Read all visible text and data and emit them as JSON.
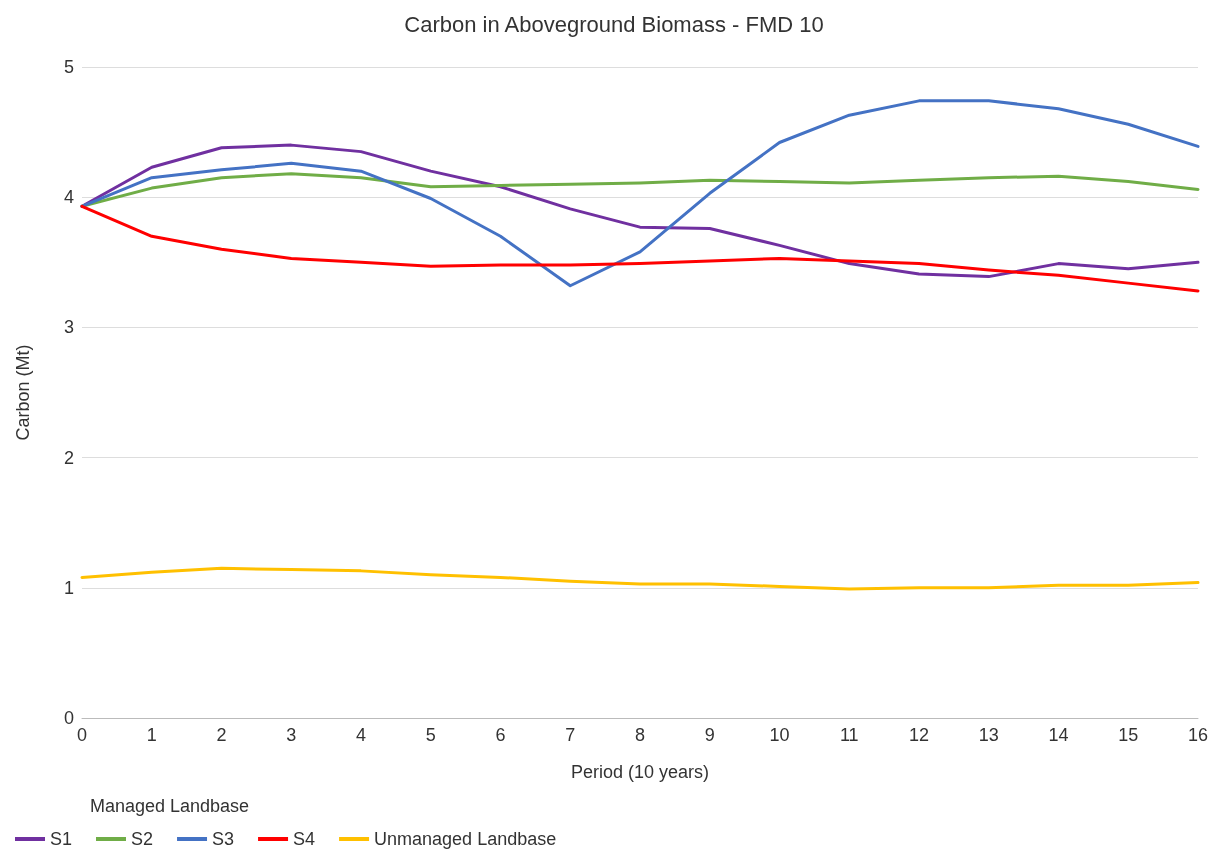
{
  "chart_data": {
    "type": "line",
    "title": "Carbon in Aboveground Biomass - FMD 10",
    "xlabel": "Period (10 years)",
    "ylabel": "Carbon (Mt)",
    "legend_title": "Managed Landbase",
    "x": [
      0,
      1,
      2,
      3,
      4,
      5,
      6,
      7,
      8,
      9,
      10,
      11,
      12,
      13,
      14,
      15,
      16
    ],
    "xlim": [
      0,
      16
    ],
    "xticks": [
      0,
      1,
      2,
      3,
      4,
      5,
      6,
      7,
      8,
      9,
      10,
      11,
      12,
      13,
      14,
      15,
      16
    ],
    "series": [
      {
        "name": "S1",
        "color": "#7030a0",
        "values": [
          3.93,
          4.23,
          4.38,
          4.4,
          4.35,
          4.2,
          4.08,
          3.91,
          3.77,
          3.76,
          3.63,
          3.49,
          3.41,
          3.39,
          3.49,
          3.45,
          3.5
        ]
      },
      {
        "name": "S2",
        "color": "#70ad47",
        "values": [
          3.93,
          4.07,
          4.15,
          4.18,
          4.15,
          4.08,
          4.09,
          4.1,
          4.11,
          4.13,
          4.12,
          4.11,
          4.13,
          4.15,
          4.16,
          4.12,
          4.06
        ]
      },
      {
        "name": "S3",
        "color": "#4472c4",
        "values": [
          3.93,
          4.15,
          4.21,
          4.26,
          4.2,
          3.99,
          3.7,
          3.32,
          3.58,
          4.03,
          4.42,
          4.63,
          4.74,
          4.74,
          4.68,
          4.56,
          4.39
        ]
      },
      {
        "name": "S4",
        "color": "#ff0000",
        "values": [
          3.93,
          3.7,
          3.6,
          3.53,
          3.5,
          3.47,
          3.48,
          3.48,
          3.49,
          3.51,
          3.53,
          3.51,
          3.49,
          3.44,
          3.4,
          3.34,
          3.28
        ]
      },
      {
        "name": "Unmanaged Landbase",
        "color": "#ffc000",
        "values": [
          1.08,
          1.12,
          1.15,
          1.14,
          1.13,
          1.1,
          1.08,
          1.05,
          1.03,
          1.03,
          1.01,
          0.99,
          1.0,
          1.0,
          1.02,
          1.02,
          1.04
        ]
      }
    ],
    "ylim": [
      0,
      5
    ],
    "yticks": [
      0,
      1,
      2,
      3,
      4,
      5
    ],
    "grid": "y",
    "legend": "bottom left",
    "marker": "none",
    "line_style": "solid"
  }
}
